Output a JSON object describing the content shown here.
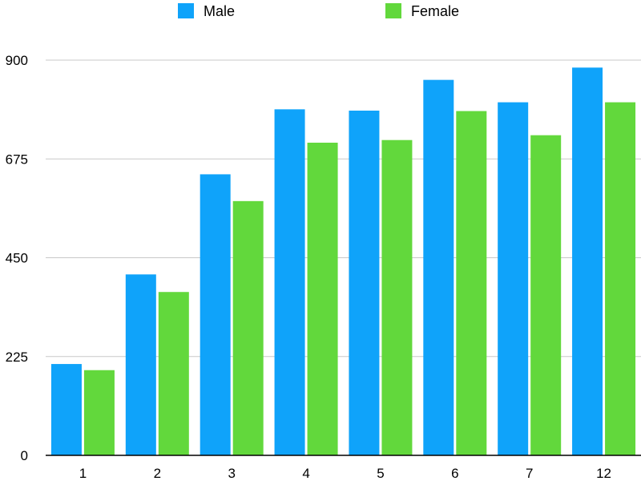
{
  "chart_data": {
    "type": "bar",
    "categories": [
      "1",
      "2",
      "3",
      "4",
      "5",
      "6",
      "7",
      "12"
    ],
    "series": [
      {
        "name": "Male",
        "color": "#0fa3fa",
        "values": [
          208,
          412,
          640,
          788,
          785,
          855,
          804,
          883
        ]
      },
      {
        "name": "Female",
        "color": "#62d83c",
        "values": [
          194,
          372,
          579,
          712,
          718,
          784,
          729,
          804
        ]
      }
    ],
    "yticks": [
      0,
      225,
      450,
      675,
      900
    ],
    "ylim": [
      0,
      900
    ],
    "legend": "top",
    "grid": true,
    "title": "",
    "xlabel": "",
    "ylabel": ""
  }
}
